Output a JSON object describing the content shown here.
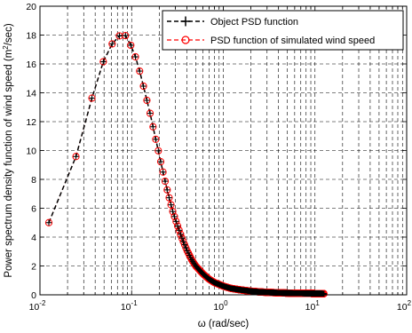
{
  "chart_data": {
    "type": "line",
    "xscale": "log",
    "xlim": [
      0.01,
      100
    ],
    "ylim": [
      0,
      20
    ],
    "grid": true,
    "legend_position": "top-right",
    "xlabel": "ω (rad/sec)",
    "ylabel_prefix": "Power spectrum density function of wind speed (m",
    "ylabel_sup": "2",
    "ylabel_suffix": "/sec)",
    "xticks": [
      0.01,
      0.1,
      1,
      10,
      100
    ],
    "xtick_labels": [
      {
        "base": "10",
        "exp": "-2"
      },
      {
        "base": "10",
        "exp": "-1"
      },
      {
        "base": "10",
        "exp": "0"
      },
      {
        "base": "10",
        "exp": "1"
      },
      {
        "base": "10",
        "exp": "2"
      }
    ],
    "yticks": [
      0,
      2,
      4,
      6,
      8,
      10,
      12,
      14,
      16,
      18,
      20
    ],
    "series": [
      {
        "name": "Object PSD function",
        "color": "#000000",
        "style": "dashed",
        "marker": "plus"
      },
      {
        "name": "PSD function of simulated wind speed",
        "color": "#ff0000",
        "style": "dashed",
        "marker": "circle"
      }
    ],
    "curve": {
      "x": [
        0.0125,
        0.0245,
        0.0345,
        0.045,
        0.055,
        0.065,
        0.075,
        0.085,
        0.095,
        0.11,
        0.125,
        0.14,
        0.16,
        0.18,
        0.2,
        0.22,
        0.25,
        0.28,
        0.32,
        0.36,
        0.4,
        0.45,
        0.5,
        0.6,
        0.7,
        0.8,
        1.0,
        1.2,
        1.5,
        2.0,
        2.5,
        3.0,
        4.0,
        5.0,
        6.0,
        8.0,
        10.0,
        12.5
      ],
      "y": [
        5.0,
        9.5,
        13.0,
        15.5,
        17.0,
        17.6,
        18.0,
        18.0,
        17.5,
        16.5,
        15.3,
        14.0,
        12.5,
        11.0,
        9.7,
        8.5,
        7.0,
        5.8,
        4.7,
        3.8,
        3.1,
        2.45,
        2.0,
        1.45,
        1.08,
        0.85,
        0.6,
        0.45,
        0.35,
        0.25,
        0.2,
        0.17,
        0.14,
        0.12,
        0.11,
        0.1,
        0.09,
        0.08
      ]
    }
  }
}
